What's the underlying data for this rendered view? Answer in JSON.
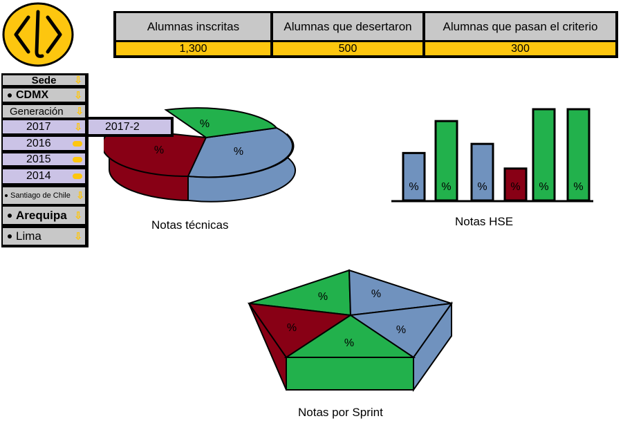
{
  "stats": {
    "headers": [
      "Alumnas inscritas",
      "Alumnas que desertaron",
      "Alumnas que pasan el criterio"
    ],
    "values": [
      "1,300",
      "500",
      "300"
    ]
  },
  "sidebar": {
    "sede_title": "Sede",
    "cdmx": "CDMX",
    "generacion_title": "Generación",
    "years": [
      "2017",
      "2016",
      "2015",
      "2014"
    ],
    "sub_generation": "2017-2",
    "other_sedes": [
      "Santiago de Chile",
      "Arequipa",
      "Lima"
    ]
  },
  "charts": {
    "tecnicas_label": "Notas técnicas",
    "hse_label": "Notas HSE",
    "sprint_label": "Notas por Sprint",
    "slice_text": "%"
  },
  "colors": {
    "accent": "#fdc60f",
    "green": "#22b14c",
    "blue": "#7092be",
    "red": "#880015",
    "lavender": "#cbc3e6",
    "gray": "#c8c8c8"
  },
  "chart_data": [
    {
      "type": "pie",
      "title": "Notas técnicas",
      "slice_labels": [
        "%",
        "%",
        "%"
      ],
      "colors": [
        "#22b14c",
        "#7092be",
        "#880015"
      ]
    },
    {
      "type": "bar",
      "title": "Notas HSE",
      "bar_labels": [
        "%",
        "%",
        "%",
        "%",
        "%",
        "%"
      ],
      "colors": [
        "#7092be",
        "#22b14c",
        "#7092be",
        "#880015",
        "#22b14c",
        "#22b14c"
      ],
      "values": [
        52,
        87,
        62,
        35,
        100,
        100
      ]
    },
    {
      "type": "pie",
      "title": "Notas por Sprint",
      "slice_labels": [
        "%",
        "%",
        "%",
        "%",
        "%"
      ],
      "colors": [
        "#22b14c",
        "#7092be",
        "#880015",
        "#7092be",
        "#22b14c"
      ]
    }
  ]
}
